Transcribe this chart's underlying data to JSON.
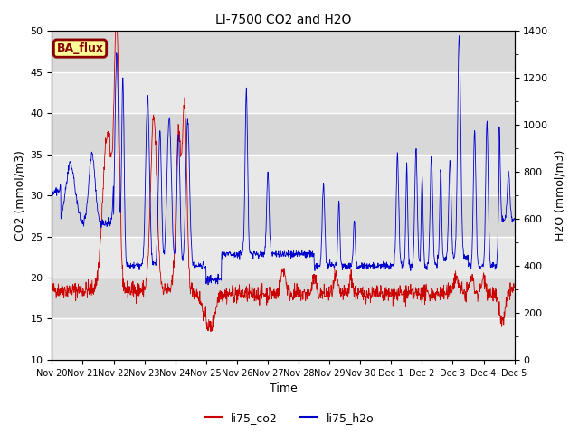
{
  "title": "LI-7500 CO2 and H2O",
  "xlabel": "Time",
  "ylabel_left": "CO2 (mmol/m3)",
  "ylabel_right": "H2O (mmol/m3)",
  "ylim_left": [
    10,
    50
  ],
  "ylim_right": [
    0,
    1400
  ],
  "yticks_left": [
    10,
    15,
    20,
    25,
    30,
    35,
    40,
    45,
    50
  ],
  "yticks_right": [
    0,
    200,
    400,
    600,
    800,
    1000,
    1200,
    1400
  ],
  "color_co2": "#cc0000",
  "color_h2o": "#0000cc",
  "annotation_text": "BA_flux",
  "annotation_bg": "#ffff99",
  "annotation_border": "#8b0000",
  "bg_color_light": "#e8e8e8",
  "bg_color_dark": "#d0d0d0",
  "legend_co2": "li75_co2",
  "legend_h2o": "li75_h2o",
  "seed": 42,
  "band_colors": [
    "#e8e8e8",
    "#d8d8d8"
  ]
}
